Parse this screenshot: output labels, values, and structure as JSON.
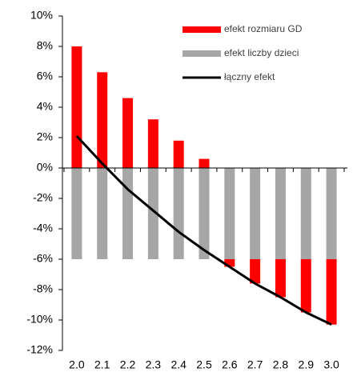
{
  "chart_data": {
    "type": "bar",
    "categories": [
      "2.0",
      "2.1",
      "2.2",
      "2.3",
      "2.4",
      "2.5",
      "2.6",
      "2.7",
      "2.8",
      "2.9",
      "3.0"
    ],
    "series": [
      {
        "name": "efekt rozmiaru GD",
        "color": "#ff0000",
        "values": [
          8.0,
          6.3,
          4.6,
          3.2,
          1.8,
          0.6,
          -0.5,
          -1.6,
          -2.5,
          -3.5,
          -4.3
        ]
      },
      {
        "name": "efekt liczby dzieci",
        "color": "#a6a6a6",
        "values": [
          -6,
          -6,
          -6,
          -6,
          -6,
          -6,
          -6,
          -6,
          -6,
          -6,
          -6
        ]
      },
      {
        "name": "łączny efekt",
        "color": "#000000",
        "type": "line",
        "values": [
          2.1,
          0.3,
          -1.4,
          -2.8,
          -4.2,
          -5.4,
          -6.5,
          -7.6,
          -8.5,
          -9.5,
          -10.3
        ]
      }
    ],
    "ylim": [
      -12,
      10
    ],
    "yticks": [
      {
        "value": -12,
        "label": "-12%"
      },
      {
        "value": -10,
        "label": "-10%"
      },
      {
        "value": -8,
        "label": "-8%"
      },
      {
        "value": -6,
        "label": "-6%"
      },
      {
        "value": -4,
        "label": "-4%"
      },
      {
        "value": -2,
        "label": "-2%"
      },
      {
        "value": 0,
        "label": "0%"
      },
      {
        "value": 2,
        "label": "2%"
      },
      {
        "value": 4,
        "label": "4%"
      },
      {
        "value": 6,
        "label": "6%"
      },
      {
        "value": 8,
        "label": "8%"
      },
      {
        "value": 10,
        "label": "10%"
      }
    ],
    "stacked": true
  }
}
